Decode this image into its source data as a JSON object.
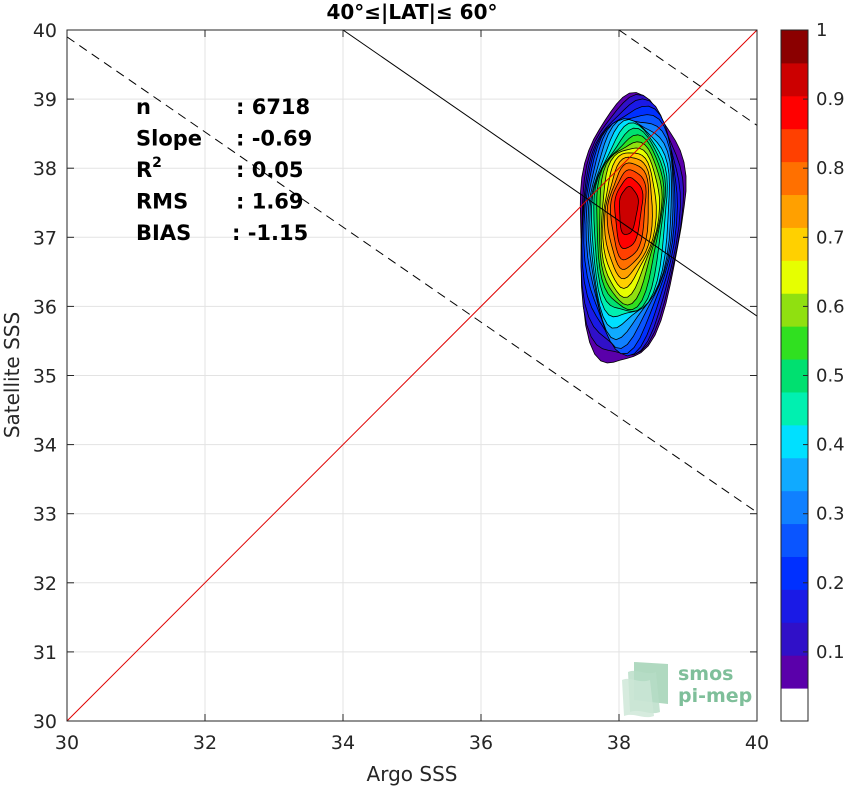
{
  "chart_data": {
    "type": "heatmap",
    "subtype": "filled-contour density scatter",
    "title": "40°≤|LAT|≤ 60°",
    "xlabel": "Argo SSS",
    "ylabel": "Satellite SSS",
    "xlim": [
      30,
      40
    ],
    "ylim": [
      30,
      40
    ],
    "xticks": [
      30,
      32,
      34,
      36,
      38,
      40
    ],
    "yticks": [
      30,
      31,
      32,
      33,
      34,
      35,
      36,
      37,
      38,
      39,
      40
    ],
    "grid": true,
    "stats": [
      {
        "label": "n",
        "value": ": 6718"
      },
      {
        "label": "Slope",
        "value": ": -0.69"
      },
      {
        "label": "R",
        "sup": "2",
        "value": ": 0.05"
      },
      {
        "label": "RMS",
        "value": ": 1.69"
      },
      {
        "label": "BIAS",
        "value": ": -1.15"
      }
    ],
    "reference_lines": {
      "identity": {
        "x": [
          30,
          40
        ],
        "y": [
          30,
          40
        ],
        "color": "#e00000",
        "style": "solid"
      },
      "fit": {
        "x": [
          34,
          40
        ],
        "y": [
          40,
          35.86
        ],
        "color": "#000000",
        "style": "solid"
      },
      "fit_upper": {
        "x": [
          38,
          40
        ],
        "y": [
          40,
          38.62
        ],
        "color": "#000000",
        "style": "dashed"
      },
      "fit_lower": {
        "x": [
          30,
          40
        ],
        "y": [
          39.9,
          33.02
        ],
        "color": "#000000",
        "style": "dashed"
      }
    },
    "density": {
      "center": {
        "x": 38.15,
        "y": 37.45
      },
      "peak": 1.0,
      "levels": [
        0.05,
        0.1,
        0.15,
        0.2,
        0.25,
        0.3,
        0.35,
        0.4,
        0.45,
        0.5,
        0.55,
        0.6,
        0.65,
        0.7,
        0.75,
        0.8,
        0.85,
        0.9,
        0.95
      ],
      "outer_extent": {
        "x": [
          37.4,
          39.0
        ],
        "y": [
          35.1,
          39.05
        ]
      }
    },
    "colorbar": {
      "range": [
        0,
        1
      ],
      "ticks": [
        0.1,
        0.2,
        0.3,
        0.4,
        0.5,
        0.6,
        0.7,
        0.8,
        0.9,
        1
      ],
      "tick_labels": [
        "0.1",
        "0.2",
        "0.3",
        "0.4",
        "0.5",
        "0.6",
        "0.7",
        "0.8",
        "0.9",
        "1"
      ],
      "colors": [
        "#ffffff",
        "#5a00aa",
        "#3010c8",
        "#1a1ae6",
        "#0030ff",
        "#0a55ff",
        "#1080ff",
        "#10aaff",
        "#00e0ff",
        "#00f0b0",
        "#00e070",
        "#30e020",
        "#90e010",
        "#e6ff00",
        "#ffd000",
        "#ffa000",
        "#ff7000",
        "#ff4000",
        "#ff0000",
        "#cc0000",
        "#8b0000"
      ]
    },
    "watermark": {
      "line1": "smos",
      "line2": "pi-mep"
    }
  }
}
